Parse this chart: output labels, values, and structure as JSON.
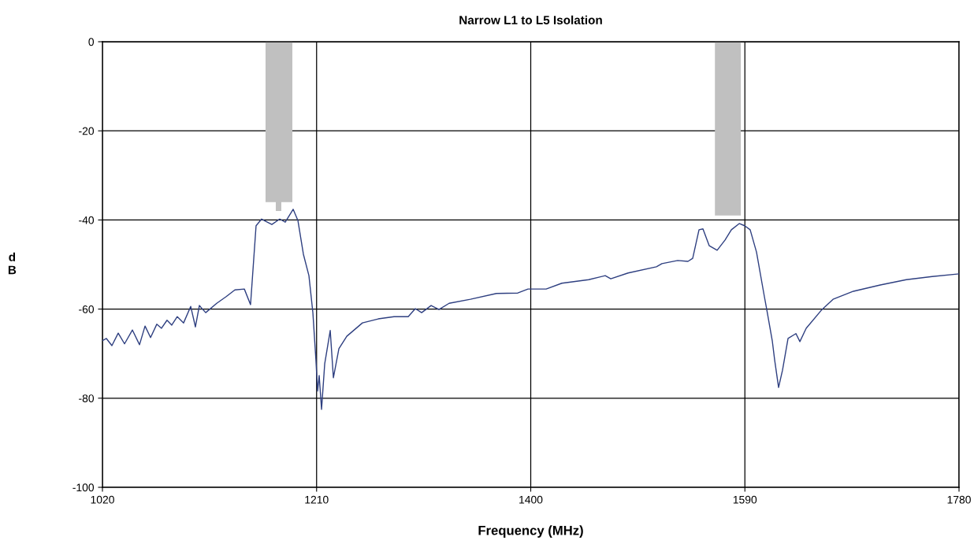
{
  "chart_data": {
    "type": "line",
    "title": "Narrow L1 to L5 Isolation",
    "xlabel": "Frequency (MHz)",
    "ylabel": "d\nB",
    "xlim": [
      1020,
      1780
    ],
    "xticks": [
      1020,
      1210,
      1400,
      1590,
      1780
    ],
    "ylim": [
      -100,
      0
    ],
    "yticks": [
      -100,
      -80,
      -60,
      -40,
      -20,
      0
    ],
    "grid": true,
    "legend": false,
    "series": [
      {
        "type": "area",
        "color": "#c0c0c0",
        "x": [
          1164.7,
          1164.7,
          1173.8,
          1173.8,
          1178.7,
          1178.7,
          1188.5,
          1188.5
        ],
        "values": [
          0,
          -36,
          -36,
          -38,
          -38,
          -36,
          -36,
          0
        ]
      },
      {
        "type": "area",
        "color": "#c0c0c0",
        "x": [
          1563.4,
          1563.4,
          1586.4,
          1586.4
        ],
        "values": [
          0,
          -39,
          -39,
          0
        ]
      },
      {
        "color": "#2e3f80",
        "x": [
          1020,
          1023.5,
          1028.4,
          1034.0,
          1039.6,
          1046.6,
          1052.9,
          1057.8,
          1062.7,
          1068.2,
          1072.4,
          1077.3,
          1081.5,
          1086.4,
          1092.0,
          1098.3,
          1102.5,
          1106.0,
          1111.6,
          1121.4,
          1129.8,
          1137.5,
          1145.9,
          1151.4,
          1156.3,
          1161.2,
          1170.3,
          1177.3,
          1182.2,
          1189.2,
          1193.4,
          1198.3,
          1203.2,
          1206.7,
          1209.4,
          1210.9,
          1212.3,
          1214.4,
          1217.2,
          1222.1,
          1224.9,
          1229.8,
          1236.8,
          1250.7,
          1264.7,
          1278.7,
          1291.3,
          1297.6,
          1303.2,
          1311.6,
          1318.6,
          1327.6,
          1346.5,
          1369.6,
          1388.5,
          1397.6,
          1413.7,
          1427.6,
          1451.4,
          1466.1,
          1471.0,
          1486.4,
          1511.5,
          1516.4,
          1530.4,
          1539.5,
          1543.7,
          1549.3,
          1552.8,
          1558.4,
          1565.4,
          1572.4,
          1578.0,
          1585.0,
          1589.8,
          1594.7,
          1600.3,
          1607.3,
          1609.4,
          1614.3,
          1616.4,
          1619.9,
          1623.4,
          1628.3,
          1635.3,
          1638.8,
          1644.4,
          1658.4,
          1668.2,
          1686.3,
          1710.1,
          1733.2,
          1756.2,
          1780.0
        ],
        "values": [
          -67.1,
          -66.6,
          -68.2,
          -65.4,
          -67.8,
          -64.7,
          -68.0,
          -63.8,
          -66.4,
          -63.4,
          -64.3,
          -62.5,
          -63.6,
          -61.7,
          -63.1,
          -59.4,
          -64.0,
          -59.2,
          -60.8,
          -58.7,
          -57.2,
          -55.7,
          -55.5,
          -59.0,
          -41.3,
          -39.8,
          -41.0,
          -39.8,
          -40.5,
          -37.6,
          -40.1,
          -47.7,
          -52.5,
          -60.8,
          -71.4,
          -78.4,
          -74.9,
          -82.5,
          -72.3,
          -64.8,
          -75.4,
          -68.9,
          -66.1,
          -63.1,
          -62.2,
          -61.7,
          -61.7,
          -59.9,
          -60.8,
          -59.2,
          -60.1,
          -58.7,
          -57.8,
          -56.5,
          -56.4,
          -55.5,
          -55.5,
          -54.2,
          -53.4,
          -52.5,
          -53.2,
          -51.9,
          -50.5,
          -49.8,
          -49.1,
          -49.3,
          -48.6,
          -42.2,
          -42.0,
          -45.8,
          -46.8,
          -44.5,
          -42.2,
          -40.8,
          -41.3,
          -42.2,
          -47.2,
          -57.2,
          -60.1,
          -67.1,
          -71.4,
          -77.6,
          -73.7,
          -66.6,
          -65.5,
          -67.3,
          -64.3,
          -60.1,
          -57.8,
          -56.0,
          -54.6,
          -53.4,
          -52.7,
          -52.1
        ]
      }
    ]
  }
}
